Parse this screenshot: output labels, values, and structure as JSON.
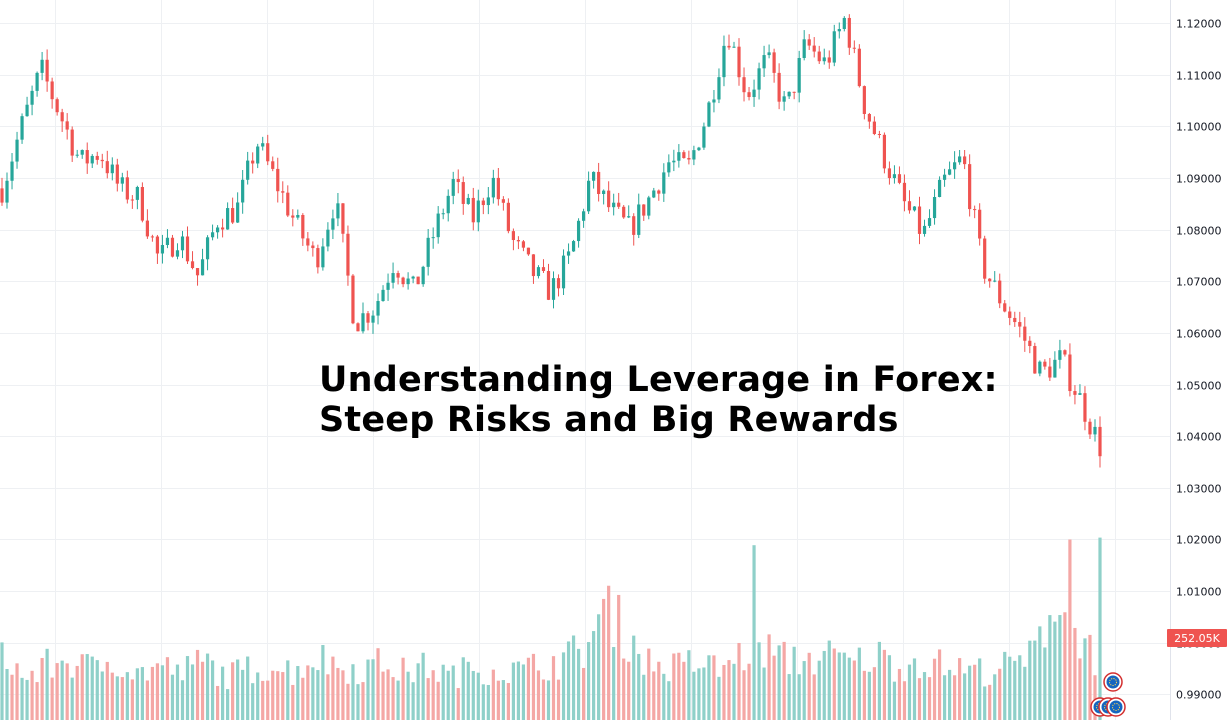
{
  "headline": {
    "line1": "Understanding Leverage in Forex:",
    "line2": "Steep Risks and Big Rewards"
  },
  "colors": {
    "up": "#26a69a",
    "down": "#ef5350",
    "up_volume": "#8fd0c9",
    "down_volume": "#f4a7a5",
    "grid": "#eef0f3",
    "volume_badge_bg": "#ef5350"
  },
  "icons": [
    "event-marker-icon",
    "event-marker-icon",
    "event-marker-icon",
    "event-marker-icon"
  ],
  "chart_data": {
    "type": "candlestick",
    "grid": true,
    "y_axis": {
      "position": "right",
      "range": [
        0.985,
        1.1245
      ],
      "ticks": [
        "1.12000",
        "1.11000",
        "1.10000",
        "1.09000",
        "1.08000",
        "1.07000",
        "1.06000",
        "1.05000",
        "1.04000",
        "1.03000",
        "1.02000",
        "1.01000",
        "1.00000",
        "0.99000"
      ],
      "tick_values": [
        1.12,
        1.11,
        1.1,
        1.09,
        1.08,
        1.07,
        1.06,
        1.05,
        1.04,
        1.03,
        1.02,
        1.01,
        1.0,
        0.99
      ]
    },
    "last_volume_label": "252.05K",
    "price_path": [
      1.088,
      1.1,
      1.111,
      1.102,
      1.093,
      1.095,
      1.088,
      1.086,
      1.074,
      1.079,
      1.071,
      1.082,
      1.084,
      1.097,
      1.089,
      1.081,
      1.074,
      1.086,
      1.062,
      1.065,
      1.074,
      1.068,
      1.079,
      1.089,
      1.082,
      1.09,
      1.078,
      1.072,
      1.068,
      1.075,
      1.09,
      1.084,
      1.08,
      1.086,
      1.093,
      1.092,
      1.103,
      1.119,
      1.106,
      1.113,
      1.103,
      1.116,
      1.112,
      1.121,
      1.104,
      1.094,
      1.085,
      1.079,
      1.089,
      1.094,
      1.073,
      1.066,
      1.06,
      1.052,
      1.055,
      1.047,
      1.038
    ],
    "volume_path": [
      0.4,
      0.22,
      0.3,
      0.33,
      0.28,
      0.35,
      0.25,
      0.3,
      0.26,
      0.33,
      0.24,
      0.28,
      0.3,
      0.27,
      0.35,
      0.3,
      0.28,
      0.32,
      0.26,
      0.3,
      0.24,
      0.29,
      0.28,
      0.27,
      0.3,
      0.33,
      0.4,
      0.62,
      0.45,
      0.3,
      0.29,
      0.32,
      0.28,
      0.36,
      0.4,
      0.33,
      0.34,
      0.35,
      0.31,
      0.36,
      0.3,
      0.33,
      0.3,
      0.28,
      0.27,
      0.3,
      0.35,
      0.7,
      0.5,
      0.3
    ]
  }
}
